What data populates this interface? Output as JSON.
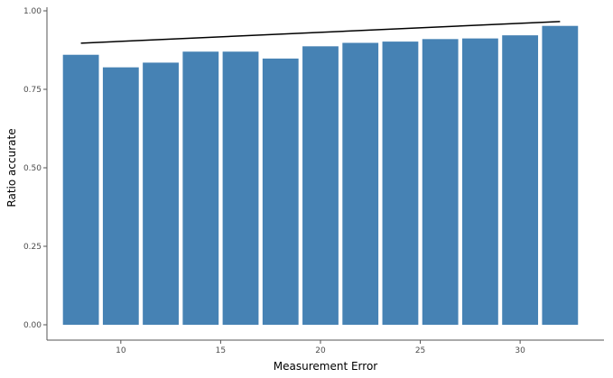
{
  "chart_data": {
    "type": "bar",
    "x": [
      8,
      10,
      12,
      14,
      16,
      18,
      20,
      22,
      24,
      26,
      28,
      30,
      32
    ],
    "values": [
      0.86,
      0.82,
      0.835,
      0.87,
      0.87,
      0.848,
      0.887,
      0.898,
      0.902,
      0.91,
      0.912,
      0.922,
      0.952
    ],
    "trend_line": {
      "x": [
        8,
        32
      ],
      "y": [
        0.897,
        0.966
      ]
    },
    "xlabel": "Measurement Error",
    "ylabel": "Ratio accurate",
    "xlim": [
      6.3,
      34.2
    ],
    "ylim": [
      0,
      1.0
    ],
    "xticks": [
      10,
      15,
      20,
      25,
      30
    ],
    "yticks": [
      0.0,
      0.25,
      0.5,
      0.75,
      1.0
    ],
    "ytick_labels": [
      "0.00",
      "0.25",
      "0.50",
      "0.75",
      "1.00"
    ],
    "bar_color": "#4682b4",
    "line_color": "#000000",
    "grid": false,
    "legend": "none"
  }
}
